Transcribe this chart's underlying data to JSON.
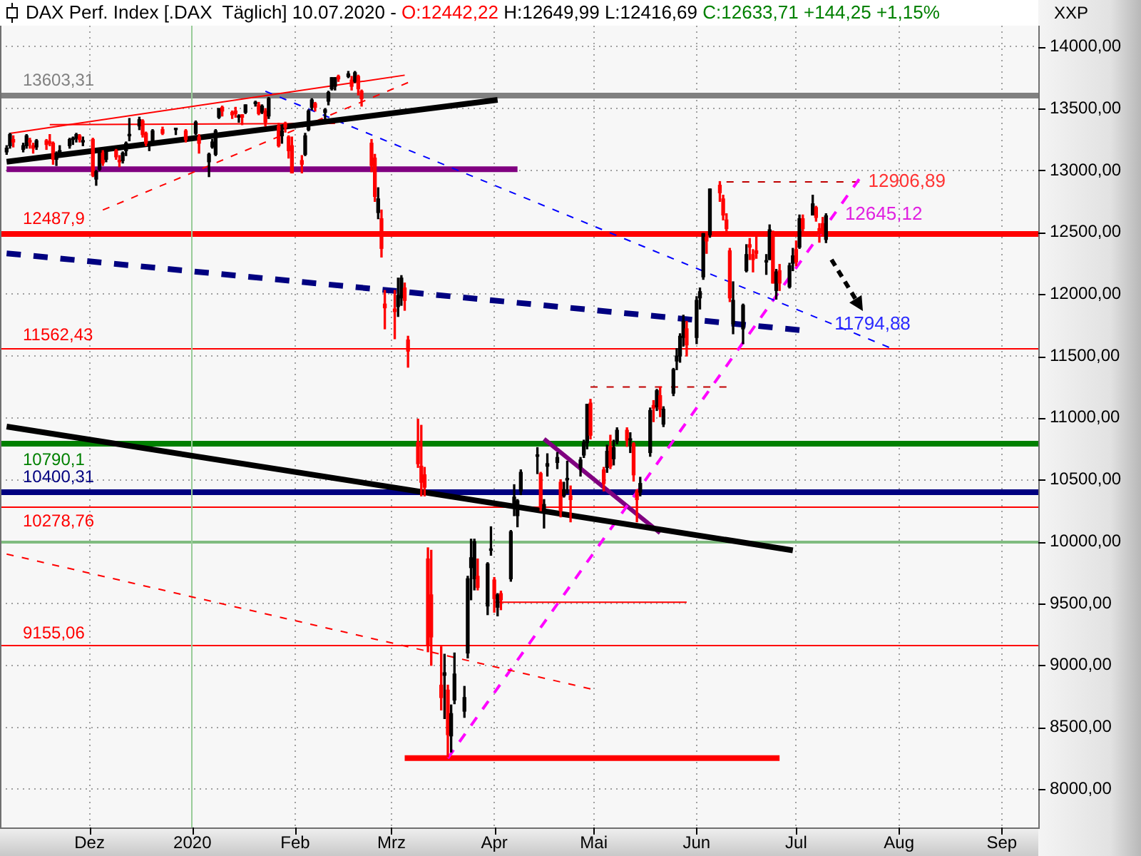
{
  "chart_data": {
    "type": "candlestick",
    "title": "DAX Perf. Index [.DAX  Täglich] 10.07.2020",
    "subtitle": "- O:12442,22 H:12649,99 L:12416,69 C:12633,71 +144,25 +1,15%",
    "ylabel": "XXP",
    "xlim": [
      "2019-11-04",
      "2020-09-12"
    ],
    "xticks": [
      {
        "value": "2019-12-01",
        "label": "Dez"
      },
      {
        "value": "2020-01-01",
        "label": "2020"
      },
      {
        "value": "2020-02-01",
        "label": "Feb"
      },
      {
        "value": "2020-03-01",
        "label": "Mrz"
      },
      {
        "value": "2020-04-01",
        "label": "Apr"
      },
      {
        "value": "2020-05-01",
        "label": "Mai"
      },
      {
        "value": "2020-06-01",
        "label": "Jun"
      },
      {
        "value": "2020-07-01",
        "label": "Jul"
      },
      {
        "value": "2020-08-01",
        "label": "Aug"
      },
      {
        "value": "2020-09-01",
        "label": "Sep"
      }
    ],
    "ylim": [
      7690,
      14170
    ],
    "yticks": [
      {
        "value": 8000,
        "label": "8000,00"
      },
      {
        "value": 8500,
        "label": "8500,00"
      },
      {
        "value": 9000,
        "label": "9000,00"
      },
      {
        "value": 9500,
        "label": "9500,00"
      },
      {
        "value": 10000,
        "label": "10000,00"
      },
      {
        "value": 10500,
        "label": "10500,00"
      },
      {
        "value": 11000,
        "label": "11000,00"
      },
      {
        "value": 11500,
        "label": "11500,00"
      },
      {
        "value": 12000,
        "label": "12000,00"
      },
      {
        "value": 12500,
        "label": "12500,00"
      },
      {
        "value": 13000,
        "label": "13000,00"
      },
      {
        "value": 13500,
        "label": "13500,00"
      },
      {
        "value": 14000,
        "label": "14000,00"
      }
    ],
    "grid": true,
    "series": [
      {
        "colors": [
          "#000000",
          "#000000",
          "#ff0000",
          "#000000",
          "#000000",
          "#ff0000",
          "#ff0000",
          "#000000",
          "#ff0000",
          "#ff0000",
          "#ff0000",
          "#000000",
          "#000000",
          "#000000",
          "#000000",
          "#000000",
          "#ff0000",
          "#000000",
          "#ff0000",
          "#000000",
          "#000000",
          "#ff0000",
          "#000000",
          "#ff0000",
          "#ff0000",
          "#000000",
          "#000000",
          "#000000",
          "#000000",
          "#ff0000",
          "#ff0000",
          "#000000",
          "#000000",
          "#ff0000",
          "#000000",
          "#ff0000",
          "#000000",
          "#ff0000",
          "#000000",
          "#000000",
          "#000000",
          "#000000",
          "#ff0000",
          "#ff0000",
          "#ff0000",
          "#000000",
          "#ff0000",
          "#000000",
          "#000000",
          "#ff0000",
          "#000000",
          "#ff0000",
          "#000000",
          "#ff0000",
          "#000000",
          "#ff0000",
          "#ff0000",
          "#ff0000",
          "#ff0000",
          "#000000",
          "#000000",
          "#000000",
          "#ff0000",
          "#000000",
          "#000000",
          "#000000",
          "#000000",
          "#ff0000",
          "#000000",
          "#ff0000",
          "#000000",
          "#ff0000",
          "#ff0000",
          "#ff0000",
          "#ff0000",
          "#000000",
          "#ff0000",
          "#ff0000",
          "#ff0000",
          "#000000",
          "#000000",
          "#ff0000",
          "#ff0000",
          "#ff0000",
          "#ff0000",
          "#ff0000",
          "#ff0000",
          "#ff0000",
          "#ff0000",
          "#000000",
          "#ff0000",
          "#000000",
          "#000000",
          "#000000",
          "#000000",
          "#000000",
          "#000000",
          "#ff0000",
          "#000000",
          "#000000",
          "#ff0000",
          "#000000",
          "#ff0000",
          "#000000",
          "#000000",
          "#000000",
          "#000000",
          "#000000",
          "#ff0000",
          "#000000",
          "#000000",
          "#000000",
          "#ff0000",
          "#000000",
          "#000000",
          "#ff0000",
          "#000000",
          "#000000",
          "#000000",
          "#ff0000",
          "#ff0000",
          "#000000",
          "#ff0000",
          "#000000",
          "#000000",
          "#ff0000",
          "#000000",
          "#ff0000",
          "#ff0000",
          "#000000",
          "#000000",
          "#ff0000",
          "#000000",
          "#ff0000",
          "#000000",
          "#000000",
          "#000000",
          "#000000",
          "#000000",
          "#ff0000",
          "#000000",
          "#000000",
          "#000000",
          "#ff0000",
          "#000000",
          "#ff0000",
          "#ff0000",
          "#ff0000",
          "#ff0000",
          "#000000",
          "#000000",
          "#000000",
          "#ff0000",
          "#ff0000",
          "#ff0000",
          "#000000",
          "#000000",
          "#ff0000",
          "#000000",
          "#ff0000",
          "#000000",
          "#000000",
          "#ff0000",
          "#000000",
          "#ff0000",
          "#000000",
          "#ff0000",
          "#ff0000",
          "#ff0000",
          "#000000"
        ],
        "x": [
          "2019-11-06",
          "2019-11-07",
          "2019-11-08",
          "2019-11-11",
          "2019-11-12",
          "2019-11-13",
          "2019-11-14",
          "2019-11-15",
          "2019-11-18",
          "2019-11-19",
          "2019-11-20",
          "2019-11-21",
          "2019-11-22",
          "2019-11-25",
          "2019-11-26",
          "2019-11-27",
          "2019-11-28",
          "2019-11-29",
          "2019-12-02",
          "2019-12-03",
          "2019-12-04",
          "2019-12-05",
          "2019-12-06",
          "2019-12-09",
          "2019-12-10",
          "2019-12-11",
          "2019-12-12",
          "2019-12-13",
          "2019-12-16",
          "2019-12-17",
          "2019-12-18",
          "2019-12-19",
          "2019-12-20",
          "2019-12-23",
          "2019-12-27",
          "2019-12-30",
          "2020-01-02",
          "2020-01-03",
          "2020-01-06",
          "2020-01-07",
          "2020-01-08",
          "2020-01-09",
          "2020-01-10",
          "2020-01-13",
          "2020-01-14",
          "2020-01-15",
          "2020-01-16",
          "2020-01-17",
          "2020-01-20",
          "2020-01-21",
          "2020-01-22",
          "2020-01-23",
          "2020-01-24",
          "2020-01-27",
          "2020-01-28",
          "2020-01-29",
          "2020-01-30",
          "2020-01-31",
          "2020-02-03",
          "2020-02-04",
          "2020-02-05",
          "2020-02-06",
          "2020-02-07",
          "2020-02-10",
          "2020-02-11",
          "2020-02-12",
          "2020-02-13",
          "2020-02-14",
          "2020-02-17",
          "2020-02-18",
          "2020-02-19",
          "2020-02-20",
          "2020-02-21",
          "2020-02-24",
          "2020-02-25",
          "2020-02-26",
          "2020-02-27",
          "2020-02-28",
          "2020-03-02",
          "2020-03-03",
          "2020-03-04",
          "2020-03-05",
          "2020-03-06",
          "2020-03-09",
          "2020-03-10",
          "2020-03-11",
          "2020-03-12",
          "2020-03-13",
          "2020-03-16",
          "2020-03-17",
          "2020-03-18",
          "2020-03-19",
          "2020-03-20",
          "2020-03-23",
          "2020-03-24",
          "2020-03-25",
          "2020-03-26",
          "2020-03-27",
          "2020-03-30",
          "2020-03-31",
          "2020-04-01",
          "2020-04-02",
          "2020-04-03",
          "2020-04-06",
          "2020-04-07",
          "2020-04-08",
          "2020-04-09",
          "2020-04-14",
          "2020-04-15",
          "2020-04-16",
          "2020-04-17",
          "2020-04-20",
          "2020-04-21",
          "2020-04-22",
          "2020-04-23",
          "2020-04-24",
          "2020-04-27",
          "2020-04-28",
          "2020-04-29",
          "2020-04-30",
          "2020-05-04",
          "2020-05-05",
          "2020-05-06",
          "2020-05-07",
          "2020-05-08",
          "2020-05-11",
          "2020-05-12",
          "2020-05-13",
          "2020-05-14",
          "2020-05-15",
          "2020-05-18",
          "2020-05-19",
          "2020-05-20",
          "2020-05-21",
          "2020-05-22",
          "2020-05-25",
          "2020-05-26",
          "2020-05-27",
          "2020-05-28",
          "2020-05-29",
          "2020-06-01",
          "2020-06-02",
          "2020-06-03",
          "2020-06-04",
          "2020-06-05",
          "2020-06-08",
          "2020-06-09",
          "2020-06-10",
          "2020-06-11",
          "2020-06-12",
          "2020-06-15",
          "2020-06-16",
          "2020-06-17",
          "2020-06-18",
          "2020-06-19",
          "2020-06-22",
          "2020-06-23",
          "2020-06-24",
          "2020-06-25",
          "2020-06-26",
          "2020-06-29",
          "2020-06-30",
          "2020-07-01",
          "2020-07-02",
          "2020-07-03",
          "2020-07-06",
          "2020-07-07",
          "2020-07-08",
          "2020-07-09",
          "2020-07-10"
        ],
        "ohlc": [
          [
            13150,
            13200,
            13130,
            13180
          ],
          [
            13200,
            13300,
            13180,
            13290
          ],
          [
            13250,
            13280,
            13190,
            13230
          ],
          [
            13170,
            13220,
            13150,
            13200
          ],
          [
            13200,
            13290,
            13180,
            13280
          ],
          [
            13240,
            13260,
            13180,
            13230
          ],
          [
            13200,
            13220,
            13140,
            13180
          ],
          [
            13190,
            13250,
            13170,
            13240
          ],
          [
            13240,
            13250,
            13170,
            13210
          ],
          [
            13230,
            13290,
            13200,
            13220
          ],
          [
            13220,
            13230,
            13050,
            13090
          ],
          [
            13090,
            13150,
            13040,
            13140
          ],
          [
            13140,
            13200,
            13110,
            13160
          ],
          [
            13200,
            13260,
            13180,
            13250
          ],
          [
            13250,
            13270,
            13210,
            13250
          ],
          [
            13260,
            13300,
            13230,
            13290
          ],
          [
            13280,
            13290,
            13230,
            13250
          ],
          [
            13230,
            13270,
            13200,
            13240
          ],
          [
            13250,
            13260,
            12950,
            12960
          ],
          [
            12930,
            13000,
            12880,
            12990
          ],
          [
            13010,
            13150,
            13000,
            13140
          ],
          [
            13140,
            13160,
            13040,
            13060
          ],
          [
            13090,
            13180,
            13070,
            13170
          ],
          [
            13160,
            13170,
            13090,
            13110
          ],
          [
            13080,
            13120,
            13030,
            13070
          ],
          [
            13080,
            13150,
            13060,
            13140
          ],
          [
            13160,
            13230,
            13120,
            13220
          ],
          [
            13280,
            13420,
            13240,
            13280
          ],
          [
            13360,
            13430,
            13330,
            13410
          ],
          [
            13400,
            13410,
            13270,
            13290
          ],
          [
            13300,
            13310,
            13200,
            13220
          ],
          [
            13200,
            13220,
            13160,
            13210
          ],
          [
            13240,
            13330,
            13230,
            13320
          ],
          [
            13330,
            13350,
            13290,
            13300
          ],
          [
            13330,
            13340,
            13290,
            13340
          ],
          [
            13320,
            13330,
            13230,
            13250
          ],
          [
            13300,
            13400,
            13290,
            13390
          ],
          [
            13270,
            13290,
            13140,
            13220
          ],
          [
            13070,
            13140,
            12950,
            13130
          ],
          [
            13190,
            13250,
            13180,
            13230
          ],
          [
            13130,
            13330,
            13120,
            13320
          ],
          [
            13430,
            13500,
            13420,
            13500
          ],
          [
            13510,
            13520,
            13440,
            13480
          ],
          [
            13470,
            13480,
            13420,
            13450
          ],
          [
            13480,
            13510,
            13430,
            13460
          ],
          [
            13430,
            13450,
            13390,
            13430
          ],
          [
            13450,
            13450,
            13370,
            13430
          ],
          [
            13470,
            13530,
            13460,
            13530
          ],
          [
            13540,
            13560,
            13520,
            13550
          ],
          [
            13530,
            13550,
            13450,
            13460
          ],
          [
            13470,
            13530,
            13460,
            13520
          ],
          [
            13480,
            13500,
            13360,
            13390
          ],
          [
            13440,
            13590,
            13420,
            13580
          ],
          [
            13360,
            13380,
            13190,
            13200
          ],
          [
            13280,
            13340,
            13220,
            13320
          ],
          [
            13380,
            13390,
            13310,
            13350
          ],
          [
            13270,
            13280,
            13100,
            13160
          ],
          [
            13200,
            13270,
            12980,
            12980
          ],
          [
            13080,
            13120,
            12980,
            13050
          ],
          [
            13130,
            13300,
            13120,
            13280
          ],
          [
            13330,
            13490,
            13320,
            13480
          ],
          [
            13510,
            13580,
            13490,
            13570
          ],
          [
            13540,
            13550,
            13480,
            13510
          ],
          [
            13470,
            13500,
            13410,
            13490
          ],
          [
            13560,
            13640,
            13530,
            13630
          ],
          [
            13660,
            13750,
            13650,
            13750
          ],
          [
            13680,
            13750,
            13650,
            13750
          ],
          [
            13760,
            13770,
            13720,
            13740
          ],
          [
            13760,
            13800,
            13750,
            13780
          ],
          [
            13730,
            13760,
            13650,
            13680
          ],
          [
            13720,
            13800,
            13710,
            13790
          ],
          [
            13760,
            13770,
            13610,
            13660
          ],
          [
            13640,
            13650,
            13520,
            13580
          ],
          [
            13220,
            13250,
            12990,
            13040
          ],
          [
            13100,
            13130,
            12750,
            12790
          ],
          [
            12660,
            12860,
            12610,
            12770
          ],
          [
            12610,
            12680,
            12300,
            12370
          ],
          [
            11920,
            12030,
            11720,
            11890
          ],
          [
            11880,
            12030,
            11640,
            11860
          ],
          [
            11900,
            12130,
            11820,
            11990
          ],
          [
            11970,
            12150,
            11910,
            12130
          ],
          [
            12050,
            12090,
            11870,
            11950
          ],
          [
            11630,
            11660,
            11410,
            11540
          ],
          [
            10800,
            10990,
            10600,
            10630
          ],
          [
            10610,
            10940,
            10370,
            10480
          ],
          [
            10540,
            10600,
            10370,
            10440
          ],
          [
            9860,
            9950,
            9110,
            9160
          ],
          [
            9570,
            9930,
            9000,
            9230
          ],
          [
            8840,
            9150,
            8640,
            8740
          ],
          [
            8920,
            9090,
            8570,
            8940
          ],
          [
            8800,
            8840,
            8260,
            8440
          ],
          [
            8430,
            8680,
            8300,
            8610
          ],
          [
            8720,
            9100,
            8690,
            8930
          ],
          [
            8630,
            8830,
            8580,
            8740
          ],
          [
            9100,
            9720,
            9060,
            9700
          ],
          [
            9790,
            10020,
            9530,
            9870
          ],
          [
            9700,
            10020,
            9610,
            10000
          ],
          [
            9720,
            9860,
            9610,
            9630
          ],
          [
            9480,
            9830,
            9410,
            9820
          ],
          [
            9930,
            10120,
            9890,
            9940
          ],
          [
            9690,
            9710,
            9430,
            9540
          ],
          [
            9470,
            9580,
            9400,
            9570
          ],
          [
            9580,
            9600,
            9450,
            9530
          ],
          [
            9700,
            10090,
            9680,
            10080
          ],
          [
            10280,
            10460,
            10210,
            10360
          ],
          [
            10210,
            10340,
            10120,
            10330
          ],
          [
            10410,
            10580,
            10380,
            10560
          ],
          [
            10690,
            10760,
            10550,
            10700
          ],
          [
            10550,
            10560,
            10250,
            10280
          ],
          [
            10230,
            10340,
            10110,
            10300
          ],
          [
            10610,
            10710,
            10530,
            10630
          ],
          [
            10640,
            10720,
            10590,
            10680
          ],
          [
            10480,
            10500,
            10200,
            10250
          ],
          [
            10370,
            10480,
            10360,
            10420
          ],
          [
            10500,
            10650,
            10390,
            10510
          ],
          [
            10370,
            10450,
            10160,
            10340
          ],
          [
            10600,
            10680,
            10530,
            10660
          ],
          [
            10700,
            10820,
            10680,
            10800
          ],
          [
            10800,
            11110,
            10750,
            11110
          ],
          [
            11120,
            11150,
            10830,
            10860
          ],
          [
            10580,
            10600,
            10410,
            10470
          ],
          [
            10600,
            10780,
            10560,
            10730
          ],
          [
            10770,
            10860,
            10590,
            10610
          ],
          [
            10670,
            10820,
            10620,
            10760
          ],
          [
            10810,
            10920,
            10790,
            10900
          ],
          [
            10900,
            10920,
            10770,
            10820
          ],
          [
            10820,
            10880,
            10720,
            10820
          ],
          [
            10790,
            10800,
            10490,
            10540
          ],
          [
            10410,
            10420,
            10160,
            10340
          ],
          [
            10400,
            10520,
            10370,
            10470
          ],
          [
            10720,
            11080,
            10690,
            11060
          ],
          [
            11100,
            11140,
            10970,
            11080
          ],
          [
            11090,
            11230,
            11060,
            11220
          ],
          [
            11180,
            11250,
            11010,
            11070
          ],
          [
            10950,
            11090,
            10930,
            11070
          ],
          [
            11200,
            11400,
            11180,
            11390
          ],
          [
            11460,
            11560,
            11390,
            11500
          ],
          [
            11500,
            11680,
            11450,
            11660
          ],
          [
            11650,
            11830,
            11580,
            11780
          ],
          [
            11720,
            11780,
            11500,
            11590
          ],
          [
            11650,
            11980,
            11600,
            11950
          ],
          [
            11970,
            12050,
            11880,
            12020
          ],
          [
            12140,
            12490,
            12120,
            12490
          ],
          [
            12460,
            12500,
            12330,
            12430
          ],
          [
            12480,
            12850,
            12460,
            12850
          ],
          [
            12880,
            12910,
            12750,
            12820
          ],
          [
            12770,
            12800,
            12600,
            12640
          ],
          [
            12600,
            12650,
            12500,
            12530
          ],
          [
            12350,
            12370,
            11940,
            11970
          ],
          [
            11760,
            12100,
            11680,
            11950
          ],
          [
            11720,
            11920,
            11600,
            11910
          ],
          [
            12190,
            12400,
            12180,
            12320
          ],
          [
            12400,
            12450,
            12280,
            12380
          ],
          [
            12320,
            12360,
            12180,
            12280
          ],
          [
            12350,
            12480,
            12290,
            12330
          ],
          [
            12260,
            12320,
            12160,
            12260
          ],
          [
            12280,
            12560,
            12280,
            12520
          ],
          [
            12500,
            12510,
            12090,
            12090
          ],
          [
            12030,
            12200,
            11960,
            12180
          ],
          [
            12190,
            12240,
            12030,
            12090
          ],
          [
            12060,
            12250,
            12050,
            12230
          ],
          [
            12250,
            12370,
            12190,
            12310
          ],
          [
            12360,
            12430,
            12230,
            12260
          ],
          [
            12380,
            12640,
            12370,
            12610
          ],
          [
            12610,
            12640,
            12500,
            12530
          ],
          [
            12640,
            12800,
            12640,
            12730
          ],
          [
            12700,
            12710,
            12590,
            12620
          ],
          [
            12530,
            12570,
            12420,
            12490
          ],
          [
            12570,
            12620,
            12470,
            12490
          ],
          [
            12442.22,
            12649.99,
            12416.69,
            12633.71
          ]
        ]
      },
      {
        "type": "line",
        "color": "#000000",
        "x": [
          "2019-11-06",
          "2020-04-02"
        ],
        "values": [
          13070,
          13570
        ]
      },
      {
        "type": "line",
        "color": "#000000",
        "x": [
          "2019-11-06",
          "2020-06-30"
        ],
        "values": [
          10930,
          9930
        ]
      },
      {
        "type": "line",
        "color": "#ff0000",
        "x": [
          "2019-11-07",
          "2020-03-05"
        ],
        "values": [
          13300,
          13770
        ]
      },
      {
        "type": "line",
        "color": "#ff0000",
        "x": [
          "2019-11-19",
          "2020-02-13"
        ],
        "values": [
          13370,
          13380
        ]
      },
      {
        "type": "line",
        "color": "#ff0000",
        "line_style": "dashed",
        "x": [
          "2019-12-05",
          "2020-03-06"
        ],
        "values": [
          12680,
          13710
        ]
      },
      {
        "type": "line",
        "color": "#ff0000",
        "line_style": "dashed",
        "x": [
          "2019-11-06",
          "2020-04-30"
        ],
        "values": [
          9900,
          8810
        ]
      },
      {
        "type": "line",
        "color": "#0000ff",
        "line_style": "dashed",
        "x": [
          "2020-01-23",
          "2020-07-29"
        ],
        "values": [
          13640,
          11570
        ]
      },
      {
        "type": "line",
        "color": "#000080",
        "line_style": "dashed",
        "x": [
          "2019-11-06",
          "2020-07-02"
        ],
        "values": [
          12330,
          11710
        ]
      },
      {
        "type": "line",
        "color": "#ff00ff",
        "line_style": "dashed",
        "x": [
          "2020-03-18",
          "2020-07-20"
        ],
        "values": [
          8250,
          12930
        ]
      },
      {
        "type": "line",
        "color": "#800080",
        "x": [
          "2020-04-16",
          "2020-05-21"
        ],
        "values": [
          10830,
          10070
        ]
      },
      {
        "type": "line",
        "color": "#800080",
        "x": [
          "2019-11-06",
          "2020-04-08"
        ],
        "values": [
          13010,
          13010
        ]
      },
      {
        "type": "line",
        "color": "#c00000",
        "line_style": "dashed",
        "x": [
          "2020-04-30",
          "2020-06-10"
        ],
        "values": [
          11250,
          11250
        ]
      },
      {
        "type": "line",
        "color": "#c00000",
        "line_style": "dashed",
        "x": [
          "2020-06-10",
          "2020-07-20"
        ],
        "values": [
          12906.89,
          12906.89
        ]
      },
      {
        "type": "line",
        "color": "#ff0000",
        "x": [
          "2020-04-01",
          "2020-05-29"
        ],
        "values": [
          9510,
          9510
        ]
      },
      {
        "type": "line",
        "color": "#ff0000",
        "x": [
          "2020-03-05",
          "2020-06-26"
        ],
        "values": [
          8250,
          8250
        ]
      }
    ],
    "ref_lines": [
      {
        "axis": "y",
        "value": 13603.31,
        "label": "13603,31",
        "color": "#808080"
      },
      {
        "axis": "y",
        "value": 12487.9,
        "label": "12487,9",
        "color": "#ff0000"
      },
      {
        "axis": "y",
        "value": 11562.43,
        "label": "11562,43",
        "color": "#ff0000"
      },
      {
        "axis": "y",
        "value": 10790.1,
        "label": "10790,1",
        "color": "#008000"
      },
      {
        "axis": "y",
        "value": 10400.31,
        "label": "10400,31",
        "color": "#000080"
      },
      {
        "axis": "y",
        "value": 10278.76,
        "label": "10278,76",
        "color": "#ff0000"
      },
      {
        "axis": "y",
        "value": 9155.06,
        "label": "9155,06",
        "color": "#ff0000"
      },
      {
        "axis": "y",
        "value": 10000,
        "color": "#80bc80"
      },
      {
        "axis": "x",
        "value": "2020-01-01",
        "color": "#98cc98"
      }
    ],
    "annotations": [
      {
        "text": "12906,89",
        "x": "2020-07-21",
        "y": 12906.89
      },
      {
        "text": "12645,12",
        "x": "2020-07-14",
        "y": 12645.12
      },
      "11794,88"
    ]
  }
}
